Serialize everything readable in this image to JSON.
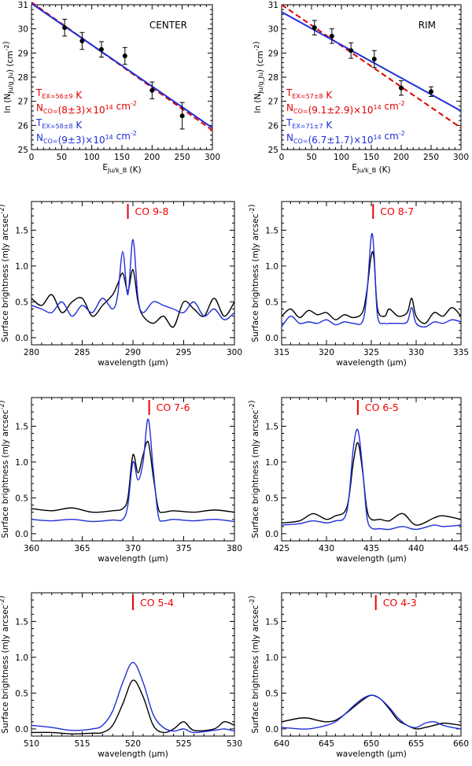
{
  "colors": {
    "black": "#000000",
    "red": "#e00000",
    "blue": "#1f2fd6"
  },
  "chart_data": [
    {
      "type": "scatter",
      "title": "CENTER",
      "xlabel": "E_Ju/k_B (K)",
      "ylabel": "ln (N_Ju/g_Ju) (cm^-2)",
      "xlim": [
        0,
        300
      ],
      "ylim": [
        25,
        31
      ],
      "xticks": [
        0,
        50,
        100,
        150,
        200,
        250,
        300
      ],
      "yticks": [
        25,
        26,
        27,
        28,
        29,
        30,
        31
      ],
      "points": [
        {
          "x": 55,
          "y": 30.05,
          "err": 0.35
        },
        {
          "x": 84,
          "y": 29.5,
          "err": 0.35
        },
        {
          "x": 116,
          "y": 29.15,
          "err": 0.32
        },
        {
          "x": 155,
          "y": 28.88,
          "err": 0.35
        },
        {
          "x": 200,
          "y": 27.45,
          "err": 0.35
        },
        {
          "x": 250,
          "y": 26.4,
          "err": 0.55
        }
      ],
      "fits": [
        {
          "name": "red fit",
          "color": "#e00000",
          "dashed": true,
          "x": [
            0,
            300
          ],
          "y": [
            31.1,
            25.8
          ]
        },
        {
          "name": "blue fit",
          "color": "#1f2fd6",
          "dashed": false,
          "x": [
            0,
            300
          ],
          "y": [
            31.05,
            25.9
          ]
        }
      ],
      "annotations": [
        {
          "color": "#e00000",
          "text": "T_EX=56±9 K"
        },
        {
          "color": "#e00000",
          "text": "N_CO=(8±3)×10^14 cm^-2"
        },
        {
          "color": "#1f2fd6",
          "text": "T_EX=58±8 K"
        },
        {
          "color": "#1f2fd6",
          "text": "N_CO=(9±3)×10^14 cm^-2"
        }
      ]
    },
    {
      "type": "scatter",
      "title": "RIM",
      "xlabel": "E_Ju/k_B (K)",
      "ylabel": "ln (N_Ju/g_Ju) (cm^-2)",
      "xlim": [
        0,
        300
      ],
      "ylim": [
        25,
        31
      ],
      "xticks": [
        0,
        50,
        100,
        150,
        200,
        250,
        300
      ],
      "yticks": [
        25,
        26,
        27,
        28,
        29,
        30,
        31
      ],
      "points": [
        {
          "x": 55,
          "y": 30.05,
          "err": 0.3
        },
        {
          "x": 84,
          "y": 29.7,
          "err": 0.3
        },
        {
          "x": 116,
          "y": 29.1,
          "err": 0.32
        },
        {
          "x": 155,
          "y": 28.75,
          "err": 0.35
        },
        {
          "x": 200,
          "y": 27.55,
          "err": 0.3
        },
        {
          "x": 250,
          "y": 27.4,
          "err": 0.2
        }
      ],
      "fits": [
        {
          "name": "red fit",
          "color": "#e00000",
          "dashed": true,
          "x": [
            0,
            300
          ],
          "y": [
            31.0,
            25.9
          ]
        },
        {
          "name": "blue fit",
          "color": "#1f2fd6",
          "dashed": false,
          "x": [
            0,
            300
          ],
          "y": [
            30.7,
            26.6
          ]
        }
      ],
      "annotations": [
        {
          "color": "#e00000",
          "text": "T_EX=57±8 K"
        },
        {
          "color": "#e00000",
          "text": "N_CO=(9.1±2.9)×10^14 cm^-2"
        },
        {
          "color": "#1f2fd6",
          "text": "T_EX=71±7 K"
        },
        {
          "color": "#1f2fd6",
          "text": "N_CO=(6.7±1.7)×10^14 cm^-2"
        }
      ]
    },
    {
      "type": "line",
      "line_label": "CO 9-8",
      "line_center": 289.5,
      "xlabel": "wavelength (μm)",
      "ylabel": "Surface brightness (mJy arcsec^-2)",
      "xlim": [
        280,
        300
      ],
      "ylim": [
        -0.1,
        1.9
      ],
      "xticks": [
        280,
        285,
        290,
        295,
        300
      ],
      "yticks": [
        0.0,
        0.5,
        1.0,
        1.5
      ],
      "series": [
        {
          "name": "black",
          "color": "#000000",
          "x": [
            280,
            281,
            282,
            283,
            284,
            285,
            286,
            287,
            288,
            288.5,
            289,
            289.5,
            290,
            290.5,
            291,
            292,
            293,
            294,
            295,
            296,
            297,
            298,
            299,
            300
          ],
          "y": [
            0.55,
            0.45,
            0.6,
            0.35,
            0.5,
            0.55,
            0.3,
            0.45,
            0.6,
            0.75,
            0.9,
            0.65,
            0.95,
            0.5,
            0.3,
            0.2,
            0.3,
            0.15,
            0.5,
            0.4,
            0.3,
            0.55,
            0.3,
            0.5
          ]
        },
        {
          "name": "blue",
          "color": "#1f2fd6",
          "x": [
            280,
            281,
            282,
            283,
            284,
            285,
            286,
            287,
            288,
            288.5,
            289,
            289.5,
            290,
            290.5,
            291,
            292,
            293,
            294,
            295,
            296,
            297,
            298,
            299,
            300
          ],
          "y": [
            0.45,
            0.4,
            0.35,
            0.5,
            0.3,
            0.45,
            0.35,
            0.55,
            0.4,
            0.6,
            1.2,
            0.6,
            1.37,
            0.55,
            0.35,
            0.5,
            0.45,
            0.4,
            0.35,
            0.5,
            0.3,
            0.4,
            0.25,
            0.35
          ]
        }
      ]
    },
    {
      "type": "line",
      "line_label": "CO 8-7",
      "line_center": 325.2,
      "xlabel": "wavelength (μm)",
      "ylabel": "Surface brightness (mJy arcsec^-2)",
      "xlim": [
        315,
        335
      ],
      "ylim": [
        -0.1,
        1.9
      ],
      "xticks": [
        315,
        320,
        325,
        330,
        335
      ],
      "yticks": [
        0.0,
        0.5,
        1.0,
        1.5
      ],
      "series": [
        {
          "name": "black",
          "color": "#000000",
          "x": [
            315,
            316,
            317,
            318,
            319,
            320,
            321,
            322,
            323,
            324,
            324.5,
            325,
            325.3,
            325.7,
            326.5,
            327,
            328,
            329,
            329.5,
            330,
            331,
            332,
            333,
            334,
            335
          ],
          "y": [
            0.3,
            0.4,
            0.28,
            0.38,
            0.32,
            0.35,
            0.25,
            0.32,
            0.28,
            0.35,
            0.65,
            1.15,
            1.1,
            0.4,
            0.3,
            0.4,
            0.3,
            0.35,
            0.55,
            0.3,
            0.2,
            0.35,
            0.3,
            0.42,
            0.3
          ]
        },
        {
          "name": "blue",
          "color": "#1f2fd6",
          "x": [
            315,
            316,
            317,
            318,
            319,
            320,
            321,
            322,
            323,
            324,
            324.5,
            325,
            325.3,
            325.7,
            326.5,
            327,
            328,
            329,
            329.5,
            330,
            331,
            332,
            333,
            334,
            335
          ],
          "y": [
            0.15,
            0.3,
            0.2,
            0.22,
            0.2,
            0.25,
            0.18,
            0.22,
            0.2,
            0.22,
            0.6,
            1.42,
            1.2,
            0.3,
            0.2,
            0.2,
            0.2,
            0.22,
            0.42,
            0.2,
            0.15,
            0.22,
            0.2,
            0.25,
            0.22
          ]
        }
      ]
    },
    {
      "type": "line",
      "line_label": "CO 7-6",
      "line_center": 371.6,
      "xlabel": "wavelength (μm)",
      "ylabel": "Surface brightness (mJy arcsec^-2)",
      "xlim": [
        360,
        380
      ],
      "ylim": [
        -0.1,
        1.9
      ],
      "xticks": [
        360,
        365,
        370,
        375,
        380
      ],
      "yticks": [
        0.0,
        0.5,
        1.0,
        1.5
      ],
      "series": [
        {
          "name": "black",
          "color": "#000000",
          "x": [
            360,
            362,
            364,
            366,
            368,
            369,
            369.5,
            370,
            370.5,
            371,
            371.5,
            372,
            372.5,
            373,
            374,
            376,
            378,
            380
          ],
          "y": [
            0.35,
            0.32,
            0.36,
            0.3,
            0.32,
            0.35,
            0.5,
            1.1,
            0.85,
            1.1,
            1.28,
            0.8,
            0.35,
            0.3,
            0.32,
            0.3,
            0.33,
            0.3
          ]
        },
        {
          "name": "blue",
          "color": "#1f2fd6",
          "x": [
            360,
            362,
            364,
            366,
            368,
            369,
            369.5,
            370,
            370.5,
            371,
            371.5,
            372,
            372.5,
            373,
            374,
            376,
            378,
            380
          ],
          "y": [
            0.2,
            0.18,
            0.2,
            0.17,
            0.19,
            0.2,
            0.4,
            1.0,
            0.75,
            1.0,
            1.6,
            0.9,
            0.25,
            0.18,
            0.2,
            0.18,
            0.2,
            0.17
          ]
        }
      ]
    },
    {
      "type": "line",
      "line_label": "CO 6-5",
      "line_center": 433.5,
      "xlabel": "wavelength (μm)",
      "ylabel": "Surface brightness (mJy arcsec^-2)",
      "xlim": [
        425,
        445
      ],
      "ylim": [
        -0.1,
        1.9
      ],
      "xticks": [
        425,
        430,
        435,
        440,
        445
      ],
      "yticks": [
        0.0,
        0.5,
        1.0,
        1.5
      ],
      "series": [
        {
          "name": "black",
          "color": "#000000",
          "x": [
            425,
            427,
            428.5,
            430,
            431,
            432,
            432.5,
            433,
            433.5,
            434,
            434.5,
            435,
            436,
            437,
            438.5,
            440,
            442,
            443,
            445
          ],
          "y": [
            0.15,
            0.18,
            0.28,
            0.2,
            0.25,
            0.3,
            0.5,
            1.0,
            1.27,
            0.9,
            0.35,
            0.2,
            0.2,
            0.18,
            0.28,
            0.12,
            0.22,
            0.25,
            0.2
          ]
        },
        {
          "name": "blue",
          "color": "#1f2fd6",
          "x": [
            425,
            427,
            428.5,
            430,
            431,
            432,
            432.5,
            433,
            433.5,
            434,
            434.5,
            435,
            436,
            437,
            438.5,
            440,
            442,
            443,
            445
          ],
          "y": [
            0.12,
            0.14,
            0.18,
            0.15,
            0.18,
            0.22,
            0.5,
            1.2,
            1.45,
            0.95,
            0.25,
            0.08,
            0.07,
            0.06,
            0.1,
            0.06,
            0.12,
            0.1,
            0.12
          ]
        }
      ]
    },
    {
      "type": "line",
      "line_label": "CO 5-4",
      "line_center": 520,
      "xlabel": "wavelength (μm)",
      "ylabel": "Surface brightness (mJy arcsec^-2)",
      "xlim": [
        510,
        530
      ],
      "ylim": [
        -0.1,
        1.9
      ],
      "xticks": [
        510,
        515,
        520,
        525,
        530
      ],
      "yticks": [
        0.0,
        0.5,
        1.0,
        1.5
      ],
      "series": [
        {
          "name": "black",
          "color": "#000000",
          "x": [
            510,
            512,
            514,
            516,
            517,
            518,
            519,
            520,
            521,
            522,
            523,
            524,
            525,
            526,
            528,
            529,
            530
          ],
          "y": [
            -0.05,
            -0.05,
            -0.07,
            -0.06,
            -0.05,
            0.05,
            0.35,
            0.68,
            0.45,
            0.05,
            -0.05,
            0.0,
            0.1,
            -0.02,
            0.0,
            0.1,
            0.05
          ]
        },
        {
          "name": "blue",
          "color": "#1f2fd6",
          "x": [
            510,
            512,
            514,
            516,
            517,
            518,
            519,
            520,
            521,
            522,
            523,
            524,
            525,
            526,
            528,
            529,
            530
          ],
          "y": [
            0.05,
            0.02,
            -0.02,
            0.0,
            0.05,
            0.25,
            0.65,
            0.93,
            0.65,
            0.2,
            0.02,
            -0.03,
            0.0,
            -0.05,
            -0.02,
            0.0,
            -0.03
          ]
        }
      ]
    },
    {
      "type": "line",
      "line_label": "CO 4-3",
      "line_center": 650.5,
      "xlabel": "wavelength (μm)",
      "ylabel": "Surface brightness (mJy arcsec^-2)",
      "xlim": [
        640,
        660
      ],
      "ylim": [
        -0.1,
        1.9
      ],
      "xticks": [
        640,
        645,
        650,
        655,
        660
      ],
      "yticks": [
        0.0,
        0.5,
        1.0,
        1.5
      ],
      "series": [
        {
          "name": "black",
          "color": "#000000",
          "x": [
            640,
            642,
            643,
            644,
            645,
            646,
            647,
            648,
            649,
            650,
            651,
            652,
            653,
            654,
            655,
            656,
            657,
            658,
            659,
            660
          ],
          "y": [
            0.1,
            0.15,
            0.15,
            0.12,
            0.1,
            0.12,
            0.2,
            0.3,
            0.4,
            0.47,
            0.42,
            0.28,
            0.12,
            0.05,
            0.0,
            0.02,
            0.05,
            0.08,
            0.07,
            0.05
          ]
        },
        {
          "name": "blue",
          "color": "#1f2fd6",
          "x": [
            640,
            642,
            643,
            644,
            645,
            646,
            647,
            648,
            649,
            650,
            651,
            652,
            653,
            654,
            655,
            656,
            657,
            658,
            659,
            660
          ],
          "y": [
            0.02,
            0.0,
            0.0,
            0.02,
            0.05,
            0.1,
            0.2,
            0.32,
            0.42,
            0.47,
            0.42,
            0.3,
            0.15,
            0.05,
            0.02,
            0.08,
            0.1,
            0.05,
            0.02,
            0.0
          ]
        }
      ]
    }
  ]
}
